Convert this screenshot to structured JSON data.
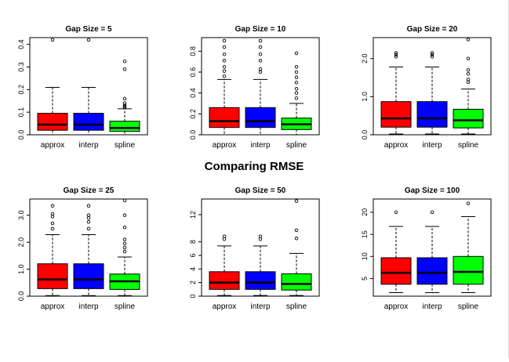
{
  "main_title": "Comparing RMSE",
  "colors": {
    "approx": "#ff0000",
    "interp": "#0000ff",
    "spline": "#00ff00",
    "median": "#000000"
  },
  "chart_data": [
    {
      "type": "boxplot",
      "title": "Gap Size = 5",
      "categories": [
        "approx",
        "interp",
        "spline"
      ],
      "ylim": [
        0,
        0.43
      ],
      "yticks": [
        0,
        0.1,
        0.2,
        0.3,
        0.4
      ],
      "ytick_labels": [
        "0.0",
        "0.1",
        "0.2",
        "0.3",
        "0.4"
      ],
      "boxes": [
        {
          "category": "approx",
          "lower_whisker": 0.0,
          "q1": 0.02,
          "median": 0.045,
          "q3": 0.095,
          "upper_whisker": 0.21,
          "outliers": [
            0.42
          ]
        },
        {
          "category": "interp",
          "lower_whisker": 0.0,
          "q1": 0.02,
          "median": 0.045,
          "q3": 0.095,
          "upper_whisker": 0.21,
          "outliers": [
            0.42
          ]
        },
        {
          "category": "spline",
          "lower_whisker": 0.0,
          "q1": 0.015,
          "median": 0.03,
          "q3": 0.06,
          "upper_whisker": 0.115,
          "outliers": [
            0.12,
            0.125,
            0.13,
            0.14,
            0.16,
            0.29,
            0.325
          ]
        }
      ]
    },
    {
      "type": "boxplot",
      "title": "Gap Size = 10",
      "categories": [
        "approx",
        "interp",
        "spline"
      ],
      "ylim": [
        0,
        0.93
      ],
      "yticks": [
        0,
        0.2,
        0.4,
        0.6,
        0.8
      ],
      "ytick_labels": [
        "0.0",
        "0.2",
        "0.4",
        "0.6",
        "0.8"
      ],
      "boxes": [
        {
          "category": "approx",
          "lower_whisker": 0.0,
          "q1": 0.07,
          "median": 0.13,
          "q3": 0.26,
          "upper_whisker": 0.53,
          "outliers": [
            0.56,
            0.61,
            0.65,
            0.71,
            0.77,
            0.84,
            0.9
          ]
        },
        {
          "category": "interp",
          "lower_whisker": 0.0,
          "q1": 0.07,
          "median": 0.13,
          "q3": 0.26,
          "upper_whisker": 0.53,
          "outliers": [
            0.6,
            0.63,
            0.71,
            0.77,
            0.84,
            0.9
          ]
        },
        {
          "category": "spline",
          "lower_whisker": 0.0,
          "q1": 0.05,
          "median": 0.1,
          "q3": 0.16,
          "upper_whisker": 0.3,
          "outliers": [
            0.35,
            0.4,
            0.44,
            0.5,
            0.55,
            0.6,
            0.65,
            0.78
          ]
        }
      ]
    },
    {
      "type": "boxplot",
      "title": "Gap Size = 20",
      "categories": [
        "approx",
        "interp",
        "spline"
      ],
      "ylim": [
        0,
        2.55
      ],
      "yticks": [
        0,
        1.0,
        2.0
      ],
      "ytick_labels": [
        "0.0",
        "1.0",
        "2.0"
      ],
      "boxes": [
        {
          "category": "approx",
          "lower_whisker": 0.02,
          "q1": 0.2,
          "median": 0.43,
          "q3": 0.87,
          "upper_whisker": 1.78,
          "outliers": [
            2.05,
            2.1,
            2.15
          ]
        },
        {
          "category": "interp",
          "lower_whisker": 0.02,
          "q1": 0.2,
          "median": 0.43,
          "q3": 0.87,
          "upper_whisker": 1.78,
          "outliers": [
            2.05,
            2.1,
            2.15
          ]
        },
        {
          "category": "spline",
          "lower_whisker": 0.02,
          "q1": 0.18,
          "median": 0.38,
          "q3": 0.67,
          "upper_whisker": 1.2,
          "outliers": [
            1.38,
            1.45,
            1.6,
            1.7,
            2.0,
            2.5
          ]
        }
      ]
    },
    {
      "type": "boxplot",
      "title": "Gap Size = 25",
      "categories": [
        "approx",
        "interp",
        "spline"
      ],
      "ylim": [
        0,
        3.6
      ],
      "yticks": [
        0,
        1.0,
        2.0,
        3.0
      ],
      "ytick_labels": [
        "0.0",
        "1.0",
        "2.0",
        "3.0"
      ],
      "boxes": [
        {
          "category": "approx",
          "lower_whisker": 0.02,
          "q1": 0.28,
          "median": 0.62,
          "q3": 1.2,
          "upper_whisker": 2.28,
          "outliers": [
            2.5,
            2.7,
            2.95,
            3.05,
            3.35
          ]
        },
        {
          "category": "interp",
          "lower_whisker": 0.02,
          "q1": 0.28,
          "median": 0.62,
          "q3": 1.2,
          "upper_whisker": 2.28,
          "outliers": [
            2.5,
            2.75,
            2.9,
            3.0,
            3.35
          ]
        },
        {
          "category": "spline",
          "lower_whisker": 0.02,
          "q1": 0.25,
          "median": 0.55,
          "q3": 0.82,
          "upper_whisker": 1.45,
          "outliers": [
            1.65,
            1.8,
            1.95,
            2.1,
            2.55,
            3.0,
            3.55
          ]
        }
      ]
    },
    {
      "type": "boxplot",
      "title": "Gap Size = 50",
      "categories": [
        "approx",
        "interp",
        "spline"
      ],
      "ylim": [
        0,
        14.3
      ],
      "yticks": [
        0,
        2,
        4,
        6,
        8,
        12
      ],
      "ytick_labels": [
        "0",
        "2",
        "4",
        "6",
        "8",
        "12"
      ],
      "boxes": [
        {
          "category": "approx",
          "lower_whisker": 0.1,
          "q1": 1.0,
          "median": 2.0,
          "q3": 3.6,
          "upper_whisker": 7.4,
          "outliers": [
            8.4,
            8.8
          ]
        },
        {
          "category": "interp",
          "lower_whisker": 0.1,
          "q1": 1.0,
          "median": 2.0,
          "q3": 3.6,
          "upper_whisker": 7.4,
          "outliers": [
            8.4,
            8.8
          ]
        },
        {
          "category": "spline",
          "lower_whisker": 0.1,
          "q1": 0.9,
          "median": 1.8,
          "q3": 3.3,
          "upper_whisker": 6.3,
          "outliers": [
            8.5,
            9.7,
            14.0
          ]
        }
      ]
    },
    {
      "type": "boxplot",
      "title": "Gap Size = 100",
      "categories": [
        "approx",
        "interp",
        "spline"
      ],
      "ylim": [
        1,
        23
      ],
      "yticks": [
        5,
        10,
        15,
        20
      ],
      "ytick_labels": [
        "5",
        "10",
        "15",
        "20"
      ],
      "boxes": [
        {
          "category": "approx",
          "lower_whisker": 1.8,
          "q1": 3.7,
          "median": 6.3,
          "q3": 9.7,
          "upper_whisker": 16.8,
          "outliers": [
            20.0
          ]
        },
        {
          "category": "interp",
          "lower_whisker": 1.8,
          "q1": 3.7,
          "median": 6.3,
          "q3": 9.7,
          "upper_whisker": 16.8,
          "outliers": [
            20.0
          ]
        },
        {
          "category": "spline",
          "lower_whisker": 1.8,
          "q1": 3.7,
          "median": 6.5,
          "q3": 10.0,
          "upper_whisker": 19.0,
          "outliers": [
            22.0
          ]
        }
      ]
    }
  ]
}
